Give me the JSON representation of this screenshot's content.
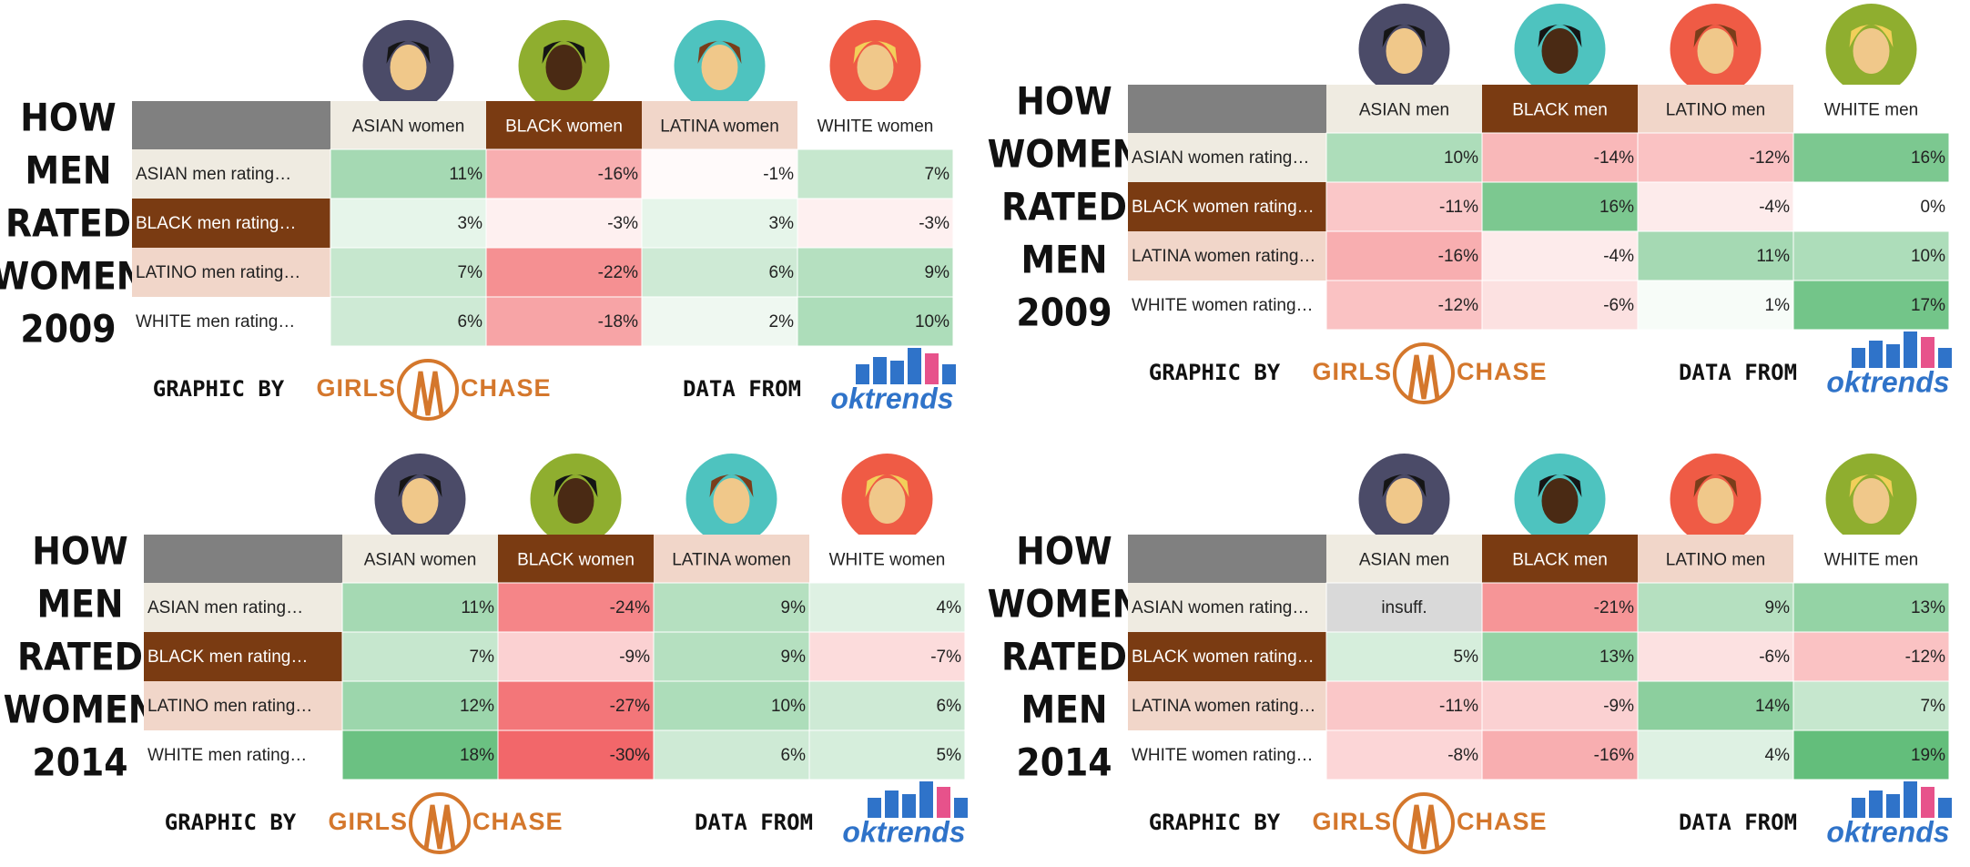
{
  "panels": [
    {
      "title": [
        "HOW",
        "MEN",
        "RATED",
        "WOMEN",
        "2009"
      ],
      "columns": [
        "ASIAN women",
        "BLACK women",
        "LATINA women",
        "WHITE women"
      ],
      "rows": [
        {
          "label": "ASIAN men rating…",
          "cells": [
            "11%",
            "-16%",
            "-1%",
            "7%"
          ]
        },
        {
          "label": "BLACK men rating…",
          "cells": [
            "3%",
            "-3%",
            "3%",
            "-3%"
          ]
        },
        {
          "label": "LATINO men rating…",
          "cells": [
            "7%",
            "-22%",
            "6%",
            "9%"
          ]
        },
        {
          "label": "WHITE men rating…",
          "cells": [
            "6%",
            "-18%",
            "2%",
            "10%"
          ]
        }
      ],
      "footer": {
        "graphic_by": "GRAPHIC BY",
        "logo_left": "GIRLS",
        "logo_right": "CHASE",
        "data_from": "DATA FROM",
        "source": "oktrends"
      }
    },
    {
      "title": [
        "HOW",
        "WOMEN",
        "RATED",
        "MEN",
        "2009"
      ],
      "columns": [
        "ASIAN men",
        "BLACK men",
        "LATINO men",
        "WHITE men"
      ],
      "rows": [
        {
          "label": "ASIAN women rating…",
          "cells": [
            "10%",
            "-14%",
            "-12%",
            "16%"
          ]
        },
        {
          "label": "BLACK women rating…",
          "cells": [
            "-11%",
            "16%",
            "-4%",
            "0%"
          ]
        },
        {
          "label": "LATINA women rating…",
          "cells": [
            "-16%",
            "-4%",
            "11%",
            "10%"
          ]
        },
        {
          "label": "WHITE women rating…",
          "cells": [
            "-12%",
            "-6%",
            "1%",
            "17%"
          ]
        }
      ],
      "footer": {
        "graphic_by": "GRAPHIC BY",
        "logo_left": "GIRLS",
        "logo_right": "CHASE",
        "data_from": "DATA FROM",
        "source": "oktrends"
      }
    },
    {
      "title": [
        "HOW",
        "MEN",
        "RATED",
        "WOMEN",
        "2014"
      ],
      "columns": [
        "ASIAN women",
        "BLACK women",
        "LATINA women",
        "WHITE women"
      ],
      "rows": [
        {
          "label": "ASIAN men rating…",
          "cells": [
            "11%",
            "-24%",
            "9%",
            "4%"
          ]
        },
        {
          "label": "BLACK men rating…",
          "cells": [
            "7%",
            "-9%",
            "9%",
            "-7%"
          ]
        },
        {
          "label": "LATINO men rating…",
          "cells": [
            "12%",
            "-27%",
            "10%",
            "6%"
          ]
        },
        {
          "label": "WHITE men rating…",
          "cells": [
            "18%",
            "-30%",
            "6%",
            "5%"
          ]
        }
      ],
      "footer": {
        "graphic_by": "GRAPHIC BY",
        "logo_left": "GIRLS",
        "logo_right": "CHASE",
        "data_from": "DATA FROM",
        "source": "oktrends"
      }
    },
    {
      "title": [
        "HOW",
        "WOMEN",
        "RATED",
        "MEN",
        "2014"
      ],
      "columns": [
        "ASIAN men",
        "BLACK men",
        "LATINO men",
        "WHITE men"
      ],
      "rows": [
        {
          "label": "ASIAN women rating…",
          "cells": [
            "insuff.",
            "-21%",
            "9%",
            "13%"
          ]
        },
        {
          "label": "BLACK women rating…",
          "cells": [
            "5%",
            "13%",
            "-6%",
            "-12%"
          ]
        },
        {
          "label": "LATINA women rating…",
          "cells": [
            "-11%",
            "-9%",
            "14%",
            "7%"
          ]
        },
        {
          "label": "WHITE women rating…",
          "cells": [
            "-8%",
            "-16%",
            "4%",
            "19%"
          ]
        }
      ],
      "footer": {
        "graphic_by": "GRAPHIC BY",
        "logo_left": "GIRLS",
        "logo_right": "CHASE",
        "data_from": "DATA FROM",
        "source": "oktrends"
      }
    }
  ]
}
